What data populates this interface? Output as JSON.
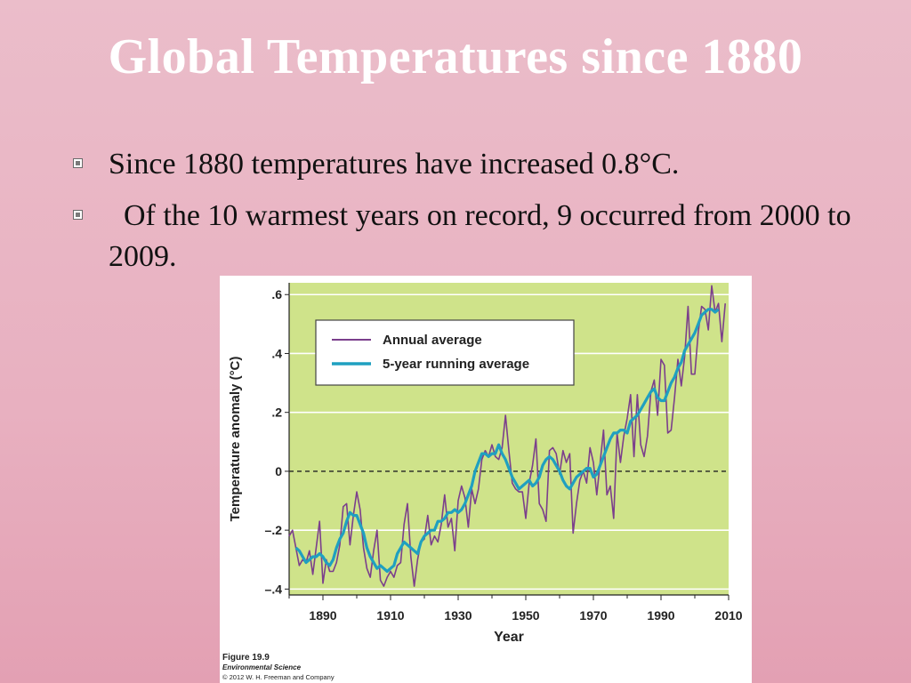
{
  "slide": {
    "title": "Global Temperatures since 1880",
    "bullets": [
      "Since 1880 temperatures have increased 0.8°C.",
      "  Of the 10 warmest years on record, 9 occurred from 2000 to 2009."
    ]
  },
  "figure": {
    "caption_title": "Figure 19.9",
    "caption_book": "Environmental Science",
    "caption_copyright": "© 2012 W. H. Freeman and Company"
  },
  "chart_data": {
    "type": "line",
    "xlabel": "Year",
    "ylabel": "Temperature anomaly (°C)",
    "xlim": [
      1880,
      2010
    ],
    "ylim": [
      -0.42,
      0.64
    ],
    "xticks": [
      1890,
      1910,
      1930,
      1950,
      1970,
      1990,
      2010
    ],
    "yticks": [
      -0.4,
      -0.2,
      0,
      0.2,
      0.4,
      0.6
    ],
    "ytick_labels": [
      "–.4",
      "–.2",
      "0",
      ".2",
      ".4",
      ".6"
    ],
    "grid": true,
    "zero_line": "dashed",
    "legend_position": "top-left",
    "colors": {
      "plot_background": "#cfe38a",
      "annual": "#7b3f8c",
      "running": "#1fa0c0"
    },
    "series": [
      {
        "name": "Annual average",
        "x": [
          1880,
          1881,
          1882,
          1883,
          1884,
          1885,
          1886,
          1887,
          1888,
          1889,
          1890,
          1891,
          1892,
          1893,
          1894,
          1895,
          1896,
          1897,
          1898,
          1899,
          1900,
          1901,
          1902,
          1903,
          1904,
          1905,
          1906,
          1907,
          1908,
          1909,
          1910,
          1911,
          1912,
          1913,
          1914,
          1915,
          1916,
          1917,
          1918,
          1919,
          1920,
          1921,
          1922,
          1923,
          1924,
          1925,
          1926,
          1927,
          1928,
          1929,
          1930,
          1931,
          1932,
          1933,
          1934,
          1935,
          1936,
          1937,
          1938,
          1939,
          1940,
          1941,
          1942,
          1943,
          1944,
          1945,
          1946,
          1947,
          1948,
          1949,
          1950,
          1951,
          1952,
          1953,
          1954,
          1955,
          1956,
          1957,
          1958,
          1959,
          1960,
          1961,
          1962,
          1963,
          1964,
          1965,
          1966,
          1967,
          1968,
          1969,
          1970,
          1971,
          1972,
          1973,
          1974,
          1975,
          1976,
          1977,
          1978,
          1979,
          1980,
          1981,
          1982,
          1983,
          1984,
          1985,
          1986,
          1987,
          1988,
          1989,
          1990,
          1991,
          1992,
          1993,
          1994,
          1995,
          1996,
          1997,
          1998,
          1999,
          2000,
          2001,
          2002,
          2003,
          2004,
          2005,
          2006,
          2007,
          2008,
          2009
        ],
        "values": [
          -0.22,
          -0.2,
          -0.26,
          -0.32,
          -0.3,
          -0.31,
          -0.27,
          -0.35,
          -0.26,
          -0.17,
          -0.38,
          -0.3,
          -0.34,
          -0.34,
          -0.31,
          -0.25,
          -0.12,
          -0.11,
          -0.25,
          -0.15,
          -0.07,
          -0.13,
          -0.26,
          -0.33,
          -0.36,
          -0.27,
          -0.2,
          -0.37,
          -0.39,
          -0.36,
          -0.34,
          -0.36,
          -0.32,
          -0.31,
          -0.18,
          -0.11,
          -0.29,
          -0.39,
          -0.3,
          -0.24,
          -0.23,
          -0.15,
          -0.25,
          -0.22,
          -0.24,
          -0.18,
          -0.08,
          -0.19,
          -0.16,
          -0.27,
          -0.1,
          -0.05,
          -0.09,
          -0.19,
          -0.06,
          -0.11,
          -0.06,
          0.04,
          0.07,
          0.05,
          0.09,
          0.05,
          0.04,
          0.08,
          0.19,
          0.07,
          -0.04,
          -0.06,
          -0.07,
          -0.07,
          -0.16,
          -0.04,
          0.02,
          0.11,
          -0.11,
          -0.13,
          -0.17,
          0.07,
          0.08,
          0.06,
          -0.01,
          0.07,
          0.03,
          0.06,
          -0.21,
          -0.11,
          -0.03,
          0.0,
          -0.04,
          0.08,
          0.03,
          -0.08,
          0.03,
          0.14,
          -0.08,
          -0.05,
          -0.16,
          0.13,
          0.03,
          0.12,
          0.18,
          0.26,
          0.05,
          0.26,
          0.09,
          0.05,
          0.12,
          0.27,
          0.31,
          0.19,
          0.38,
          0.36,
          0.13,
          0.14,
          0.25,
          0.38,
          0.29,
          0.39,
          0.56,
          0.33,
          0.33,
          0.47,
          0.56,
          0.55,
          0.48,
          0.63,
          0.54,
          0.57,
          0.44,
          0.57
        ]
      },
      {
        "name": "5-year running average",
        "x": [
          1882,
          1883,
          1884,
          1885,
          1886,
          1887,
          1888,
          1889,
          1890,
          1891,
          1892,
          1893,
          1894,
          1895,
          1896,
          1897,
          1898,
          1899,
          1900,
          1901,
          1902,
          1903,
          1904,
          1905,
          1906,
          1907,
          1908,
          1909,
          1910,
          1911,
          1912,
          1913,
          1914,
          1915,
          1916,
          1917,
          1918,
          1919,
          1920,
          1921,
          1922,
          1923,
          1924,
          1925,
          1926,
          1927,
          1928,
          1929,
          1930,
          1931,
          1932,
          1933,
          1934,
          1935,
          1936,
          1937,
          1938,
          1939,
          1940,
          1941,
          1942,
          1943,
          1944,
          1945,
          1946,
          1947,
          1948,
          1949,
          1950,
          1951,
          1952,
          1953,
          1954,
          1955,
          1956,
          1957,
          1958,
          1959,
          1960,
          1961,
          1962,
          1963,
          1964,
          1965,
          1966,
          1967,
          1968,
          1969,
          1970,
          1971,
          1972,
          1973,
          1974,
          1975,
          1976,
          1977,
          1978,
          1979,
          1980,
          1981,
          1982,
          1983,
          1984,
          1985,
          1986,
          1987,
          1988,
          1989,
          1990,
          1991,
          1992,
          1993,
          1994,
          1995,
          1996,
          1997,
          1998,
          1999,
          2000,
          2001,
          2002,
          2003,
          2004,
          2005,
          2006,
          2007
        ],
        "values": [
          -0.26,
          -0.27,
          -0.29,
          -0.31,
          -0.3,
          -0.29,
          -0.29,
          -0.28,
          -0.29,
          -0.31,
          -0.32,
          -0.3,
          -0.26,
          -0.23,
          -0.21,
          -0.17,
          -0.14,
          -0.15,
          -0.15,
          -0.18,
          -0.21,
          -0.26,
          -0.29,
          -0.31,
          -0.33,
          -0.32,
          -0.33,
          -0.34,
          -0.33,
          -0.32,
          -0.28,
          -0.26,
          -0.24,
          -0.25,
          -0.26,
          -0.27,
          -0.28,
          -0.24,
          -0.22,
          -0.21,
          -0.2,
          -0.2,
          -0.17,
          -0.17,
          -0.16,
          -0.14,
          -0.14,
          -0.13,
          -0.14,
          -0.13,
          -0.11,
          -0.08,
          -0.05,
          0.0,
          0.03,
          0.06,
          0.06,
          0.05,
          0.06,
          0.06,
          0.09,
          0.06,
          0.04,
          0.01,
          -0.02,
          -0.04,
          -0.06,
          -0.05,
          -0.04,
          -0.03,
          -0.05,
          -0.04,
          -0.02,
          0.02,
          0.04,
          0.05,
          0.04,
          0.02,
          0.0,
          -0.03,
          -0.05,
          -0.06,
          -0.04,
          -0.02,
          -0.01,
          0.0,
          0.01,
          0.01,
          -0.02,
          -0.01,
          0.02,
          0.05,
          0.08,
          0.11,
          0.13,
          0.13,
          0.14,
          0.14,
          0.13,
          0.17,
          0.18,
          0.19,
          0.21,
          0.23,
          0.25,
          0.27,
          0.28,
          0.25,
          0.24,
          0.24,
          0.27,
          0.3,
          0.32,
          0.35,
          0.37,
          0.41,
          0.43,
          0.45,
          0.47,
          0.5,
          0.53,
          0.54,
          0.55,
          0.55,
          0.54,
          0.55
        ]
      }
    ]
  }
}
